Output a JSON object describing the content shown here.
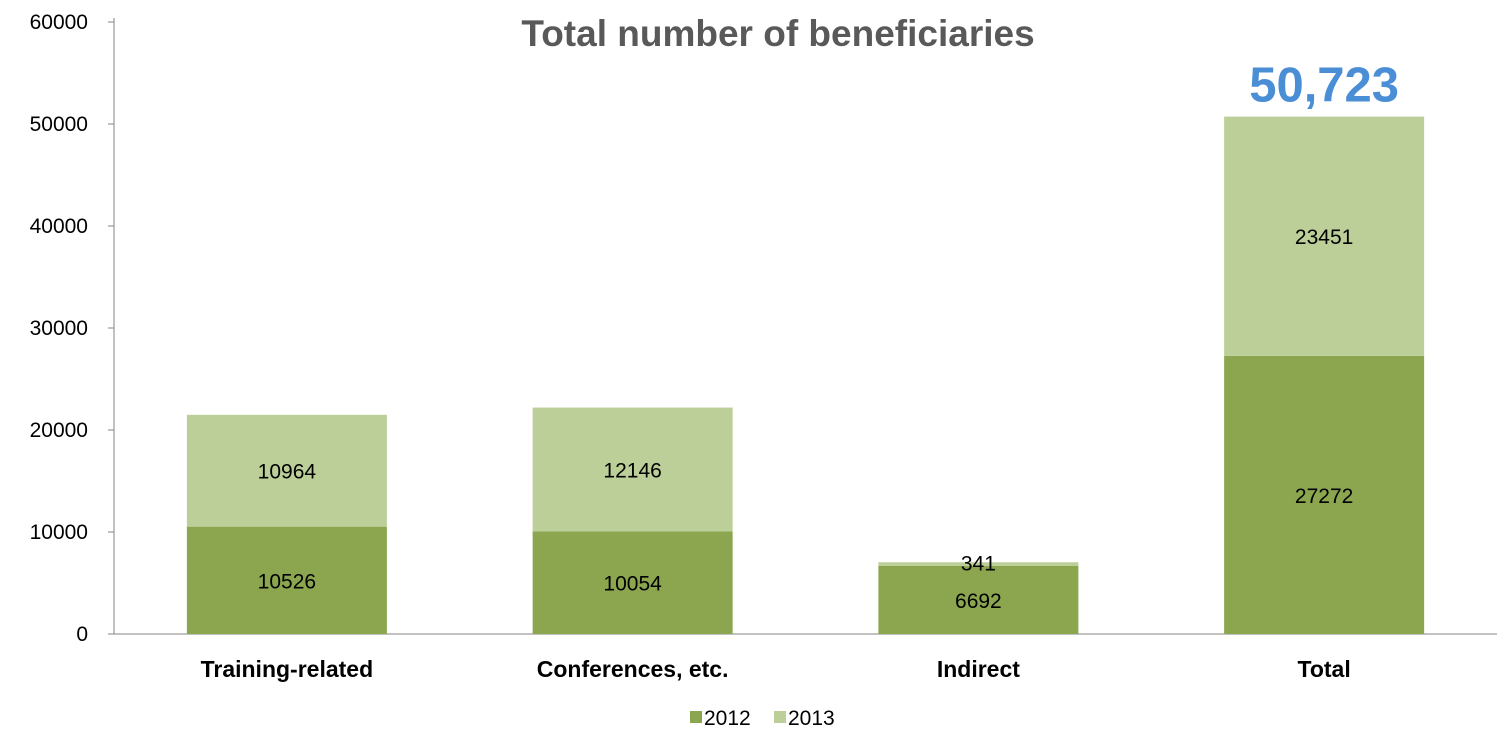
{
  "chart_data": {
    "type": "bar",
    "stacked": true,
    "title": "Total number of beneficiaries",
    "callout": {
      "text": "50,723",
      "category": "Total",
      "color": "#4A8FD6"
    },
    "categories": [
      "Training-related",
      "Conferences, etc.",
      "Indirect",
      "Total"
    ],
    "series": [
      {
        "name": "2012",
        "color": "#8BA64E",
        "values": [
          10526,
          10054,
          6692,
          27272
        ],
        "labels": [
          "10526",
          "10054",
          "6692",
          "27272"
        ]
      },
      {
        "name": "2013",
        "color": "#BCCF98",
        "values": [
          10964,
          12146,
          341,
          23451
        ],
        "labels": [
          "10964",
          "12146",
          "341",
          "23451"
        ]
      }
    ],
    "ylim": [
      0,
      60000
    ],
    "yticks": [
      "0",
      "10000",
      "20000",
      "30000",
      "40000",
      "50000",
      "60000"
    ],
    "grid": false,
    "legend_position": "bottom"
  }
}
